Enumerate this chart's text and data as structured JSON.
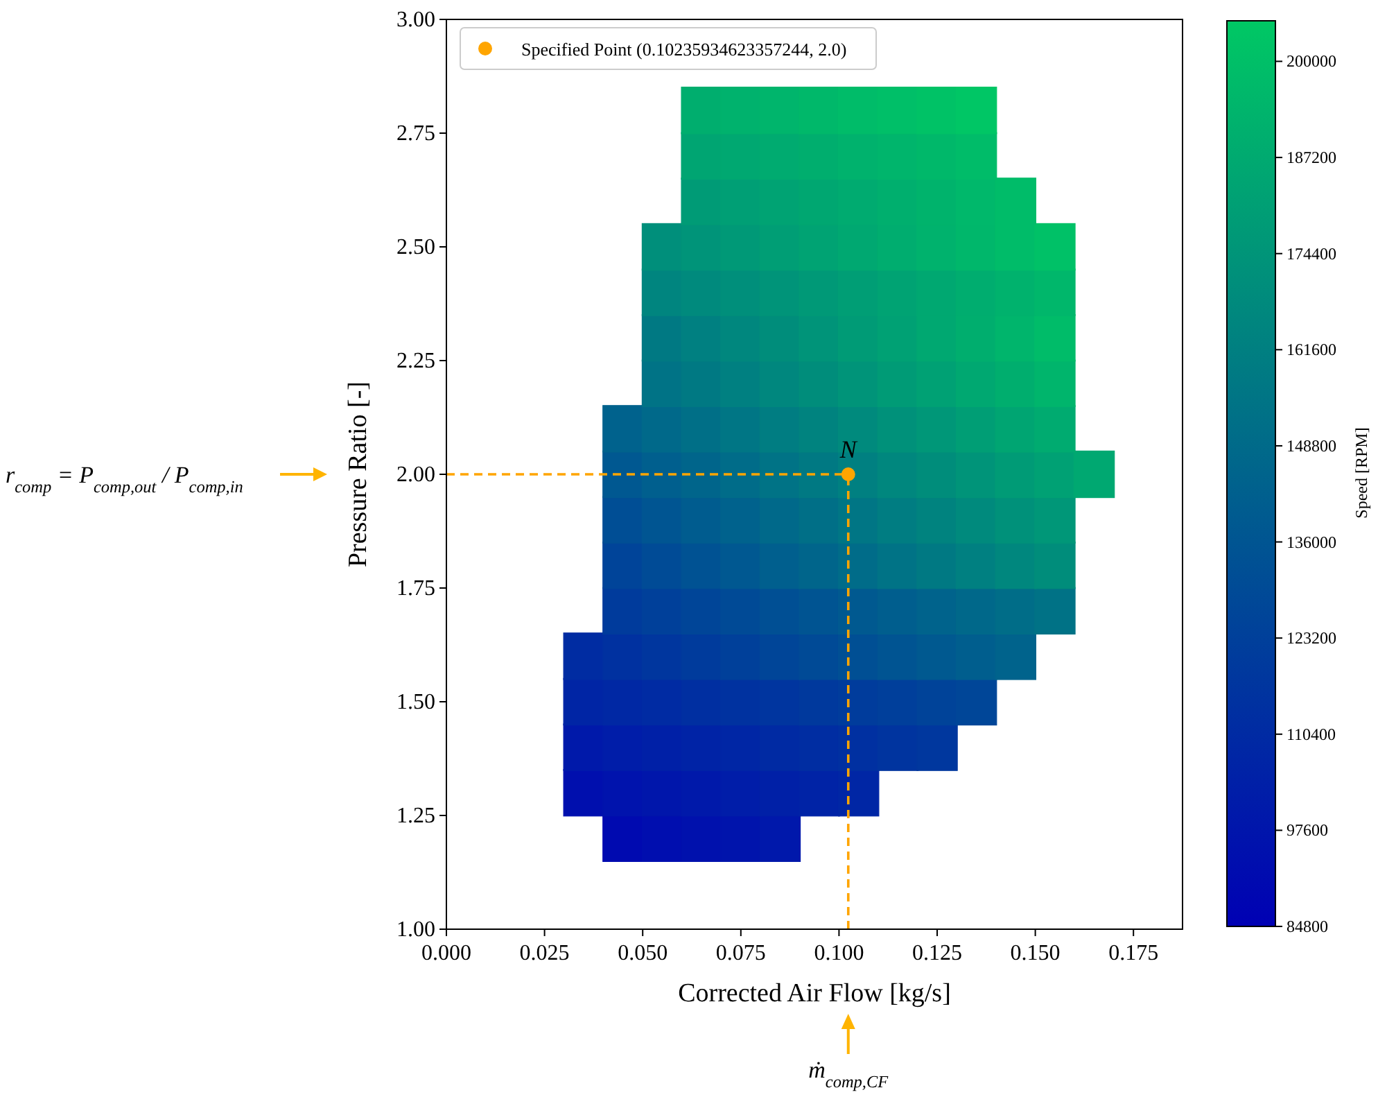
{
  "chart_data": {
    "type": "scatter",
    "xlabel": "Corrected Air Flow [kg/s]",
    "ylabel": "Pressure Ratio [-]",
    "clabel": "Speed [RPM]",
    "xlim": [
      0,
      0.1875
    ],
    "xticks": [
      {
        "value": 0,
        "label": "0.000"
      },
      {
        "value": 0.025,
        "label": "0.025"
      },
      {
        "value": 0.05,
        "label": "0.050"
      },
      {
        "value": 0.075,
        "label": "0.075"
      },
      {
        "value": 0.1,
        "label": "0.100"
      },
      {
        "value": 0.125,
        "label": "0.125"
      },
      {
        "value": 0.15,
        "label": "0.150"
      },
      {
        "value": 0.175,
        "label": "0.175"
      }
    ],
    "ylim": [
      1,
      3
    ],
    "yticks": [
      {
        "value": 1,
        "label": "1.00"
      },
      {
        "value": 1.25,
        "label": "1.25"
      },
      {
        "value": 1.5,
        "label": "1.50"
      },
      {
        "value": 1.75,
        "label": "1.75"
      },
      {
        "value": 2,
        "label": "2.00"
      },
      {
        "value": 2.25,
        "label": "2.25"
      },
      {
        "value": 2.5,
        "label": "2.50"
      },
      {
        "value": 2.75,
        "label": "2.75"
      },
      {
        "value": 3,
        "label": "3.00"
      }
    ],
    "clim": [
      84800,
      205400
    ],
    "cticks": [
      84800,
      97600,
      110400,
      123200,
      136000,
      148800,
      161600,
      174400,
      187200,
      200000
    ],
    "grid": false,
    "legend": "top left",
    "series": [
      {
        "marker": "square",
        "x": [
          0.045,
          0.055,
          0.065,
          0.075,
          0.085
        ],
        "values": [
          1.2,
          1.2,
          1.2,
          1.2,
          1.2
        ],
        "cvalues": [
          91000,
          93000,
          95000,
          97000,
          99000
        ],
        "colors": [
          "#000ab0",
          "#000eaf",
          "#0011ad",
          "#0014ac",
          "#0018ab"
        ]
      },
      {
        "marker": "square",
        "x": [
          0.035,
          0.045,
          0.055,
          0.065,
          0.075,
          0.085,
          0.095,
          0.105
        ],
        "values": [
          1.3,
          1.3,
          1.3,
          1.3,
          1.3,
          1.3,
          1.3,
          1.3
        ],
        "cvalues": [
          94000,
          96000,
          98000,
          100000,
          102000,
          104000,
          106000,
          108000
        ],
        "colors": [
          "#000fae",
          "#0013ad",
          "#0016ab",
          "#0019aa",
          "#001da9",
          "#0020a7",
          "#0023a6",
          "#0026a5"
        ]
      },
      {
        "marker": "square",
        "x": [
          0.035,
          0.045,
          0.055,
          0.065,
          0.075,
          0.085,
          0.095,
          0.105,
          0.115,
          0.125
        ],
        "values": [
          1.4,
          1.4,
          1.4,
          1.4,
          1.4,
          1.4,
          1.4,
          1.4,
          1.4,
          1.4
        ],
        "cvalues": [
          100000,
          102000,
          104000,
          106000,
          108000,
          110000,
          112000,
          114000,
          116000,
          118000
        ],
        "colors": [
          "#0019aa",
          "#001da9",
          "#0020a7",
          "#0023a6",
          "#0026a5",
          "#002aa3",
          "#002da2",
          "#0030a1",
          "#00349f",
          "#00379e"
        ]
      },
      {
        "marker": "square",
        "x": [
          0.035,
          0.045,
          0.055,
          0.065,
          0.075,
          0.085,
          0.095,
          0.105,
          0.115,
          0.125,
          0.135
        ],
        "values": [
          1.5,
          1.5,
          1.5,
          1.5,
          1.5,
          1.5,
          1.5,
          1.5,
          1.5,
          1.5,
          1.5
        ],
        "cvalues": [
          107000,
          109000,
          111000,
          113000,
          115000,
          117000,
          119000,
          121000,
          123000,
          125000,
          127000
        ],
        "colors": [
          "#0025a5",
          "#0028a4",
          "#002ba3",
          "#002fa1",
          "#0032a0",
          "#00359f",
          "#00399d",
          "#003c9c",
          "#003f9b",
          "#004399",
          "#004698"
        ]
      },
      {
        "marker": "square",
        "x": [
          0.035,
          0.045,
          0.055,
          0.065,
          0.075,
          0.085,
          0.095,
          0.105,
          0.115,
          0.125,
          0.135,
          0.145
        ],
        "values": [
          1.6,
          1.6,
          1.6,
          1.6,
          1.6,
          1.6,
          1.6,
          1.6,
          1.6,
          1.6,
          1.6,
          1.6
        ],
        "cvalues": [
          111500,
          114500,
          117500,
          120500,
          123500,
          126500,
          129500,
          132500,
          135500,
          138500,
          141500,
          144500
        ],
        "colors": [
          "#002ca2",
          "#0031a0",
          "#00369e",
          "#003b9c",
          "#00409a",
          "#004598",
          "#004a96",
          "#004f94",
          "#005492",
          "#005990",
          "#005e8e",
          "#00638c"
        ]
      },
      {
        "marker": "square",
        "x": [
          0.045,
          0.055,
          0.065,
          0.075,
          0.085,
          0.095,
          0.105,
          0.115,
          0.125,
          0.135,
          0.145,
          0.155
        ],
        "values": [
          1.7,
          1.7,
          1.7,
          1.7,
          1.7,
          1.7,
          1.7,
          1.7,
          1.7,
          1.7,
          1.7,
          1.7
        ],
        "cvalues": [
          120500,
          123500,
          126500,
          129500,
          132500,
          135500,
          138500,
          141500,
          144500,
          147500,
          150500,
          153500
        ],
        "colors": [
          "#003b9c",
          "#00409a",
          "#004598",
          "#004a96",
          "#004f94",
          "#005492",
          "#005990",
          "#005e8e",
          "#00638c",
          "#00688a",
          "#006d88",
          "#007286"
        ]
      },
      {
        "marker": "square",
        "x": [
          0.045,
          0.055,
          0.065,
          0.075,
          0.085,
          0.095,
          0.105,
          0.115,
          0.125,
          0.135,
          0.145,
          0.155
        ],
        "values": [
          1.8,
          1.8,
          1.8,
          1.8,
          1.8,
          1.8,
          1.8,
          1.8,
          1.8,
          1.8,
          1.8,
          1.8
        ],
        "cvalues": [
          126000,
          130000,
          134000,
          138000,
          142000,
          146000,
          150000,
          154000,
          158000,
          162000,
          166000,
          170000
        ],
        "colors": [
          "#004499",
          "#004b96",
          "#005293",
          "#005891",
          "#005f8e",
          "#00658b",
          "#006c89",
          "#007386",
          "#007983",
          "#008081",
          "#00877e",
          "#008d7b"
        ]
      },
      {
        "marker": "square",
        "x": [
          0.045,
          0.055,
          0.065,
          0.075,
          0.085,
          0.095,
          0.105,
          0.115,
          0.125,
          0.135,
          0.145,
          0.155
        ],
        "values": [
          1.9,
          1.9,
          1.9,
          1.9,
          1.9,
          1.9,
          1.9,
          1.9,
          1.9,
          1.9,
          1.9,
          1.9
        ],
        "cvalues": [
          132000,
          136000,
          140000,
          144000,
          148000,
          152000,
          156000,
          160000,
          164000,
          168000,
          172000,
          176000
        ],
        "colors": [
          "#004e95",
          "#005592",
          "#005c8f",
          "#00628d",
          "#00698a",
          "#006f87",
          "#007685",
          "#007d82",
          "#00837f",
          "#008a7d",
          "#00917a",
          "#009778"
        ]
      },
      {
        "marker": "square",
        "x": [
          0.045,
          0.055,
          0.065,
          0.075,
          0.085,
          0.095,
          0.105,
          0.115,
          0.125,
          0.135,
          0.145,
          0.155,
          0.165
        ],
        "values": [
          2,
          2,
          2,
          2,
          2,
          2,
          2,
          2,
          2,
          2,
          2,
          2,
          2
        ],
        "cvalues": [
          138000,
          142000,
          146000,
          150000,
          154000,
          158000,
          162000,
          166000,
          170000,
          174000,
          178000,
          182000,
          186000
        ],
        "colors": [
          "#005891",
          "#005f8e",
          "#00658b",
          "#006c89",
          "#007386",
          "#007983",
          "#008081",
          "#00877e",
          "#008d7b",
          "#009479",
          "#009b76",
          "#00a174",
          "#00a871"
        ]
      },
      {
        "marker": "square",
        "x": [
          0.045,
          0.055,
          0.065,
          0.075,
          0.085,
          0.095,
          0.105,
          0.115,
          0.125,
          0.135,
          0.145,
          0.155
        ],
        "values": [
          2.1,
          2.1,
          2.1,
          2.1,
          2.1,
          2.1,
          2.1,
          2.1,
          2.1,
          2.1,
          2.1,
          2.1
        ],
        "cvalues": [
          144000,
          148000,
          152000,
          156000,
          160000,
          164000,
          168000,
          172000,
          176000,
          180000,
          184000,
          188000
        ],
        "colors": [
          "#00628d",
          "#00698a",
          "#006f87",
          "#007685",
          "#007d82",
          "#00837f",
          "#008a7d",
          "#00917a",
          "#009778",
          "#009e75",
          "#00a572",
          "#00ab70"
        ]
      },
      {
        "marker": "square",
        "x": [
          0.055,
          0.065,
          0.075,
          0.085,
          0.095,
          0.105,
          0.115,
          0.125,
          0.135,
          0.145,
          0.155
        ],
        "values": [
          2.2,
          2.2,
          2.2,
          2.2,
          2.2,
          2.2,
          2.2,
          2.2,
          2.2,
          2.2,
          2.2
        ],
        "cvalues": [
          154000,
          158000,
          162000,
          166000,
          170000,
          174000,
          178000,
          182000,
          186000,
          190000,
          194000
        ],
        "colors": [
          "#007386",
          "#007983",
          "#008081",
          "#00877e",
          "#008d7b",
          "#009479",
          "#009b76",
          "#00a174",
          "#00a871",
          "#00ae6e",
          "#00b56c"
        ]
      },
      {
        "marker": "square",
        "x": [
          0.055,
          0.065,
          0.075,
          0.085,
          0.095,
          0.105,
          0.115,
          0.125,
          0.135,
          0.145,
          0.155
        ],
        "values": [
          2.3,
          2.3,
          2.3,
          2.3,
          2.3,
          2.3,
          2.3,
          2.3,
          2.3,
          2.3,
          2.3
        ],
        "cvalues": [
          158000,
          162000,
          166000,
          170000,
          174000,
          178000,
          182000,
          186000,
          190000,
          194000,
          198000
        ],
        "colors": [
          "#007983",
          "#008081",
          "#00877e",
          "#008d7b",
          "#009479",
          "#009b76",
          "#00a174",
          "#00a871",
          "#00ae6e",
          "#00b56c",
          "#00bc69"
        ]
      },
      {
        "marker": "square",
        "x": [
          0.055,
          0.065,
          0.075,
          0.085,
          0.095,
          0.105,
          0.115,
          0.125,
          0.135,
          0.145,
          0.155
        ],
        "values": [
          2.4,
          2.4,
          2.4,
          2.4,
          2.4,
          2.4,
          2.4,
          2.4,
          2.4,
          2.4,
          2.4
        ],
        "cvalues": [
          165000,
          168000,
          171000,
          174000,
          177000,
          180000,
          183000,
          186000,
          189000,
          192000,
          195000
        ],
        "colors": [
          "#00857f",
          "#008a7d",
          "#008f7b",
          "#009479",
          "#009977",
          "#009e75",
          "#00a373",
          "#00a871",
          "#00ad6f",
          "#00b26d",
          "#00b76b"
        ]
      },
      {
        "marker": "square",
        "x": [
          0.055,
          0.065,
          0.075,
          0.085,
          0.095,
          0.105,
          0.115,
          0.125,
          0.135,
          0.145,
          0.155
        ],
        "values": [
          2.5,
          2.5,
          2.5,
          2.5,
          2.5,
          2.5,
          2.5,
          2.5,
          2.5,
          2.5,
          2.5
        ],
        "cvalues": [
          171000,
          174000,
          177000,
          180000,
          183000,
          186000,
          189000,
          192000,
          195000,
          198000,
          201000
        ],
        "colors": [
          "#008f7b",
          "#009479",
          "#009977",
          "#009e75",
          "#00a373",
          "#00a871",
          "#00ad6f",
          "#00b26d",
          "#00b76b",
          "#00bc69",
          "#00c167"
        ]
      },
      {
        "marker": "square",
        "x": [
          0.065,
          0.075,
          0.085,
          0.095,
          0.105,
          0.115,
          0.125,
          0.135,
          0.145
        ],
        "values": [
          2.6,
          2.6,
          2.6,
          2.6,
          2.6,
          2.6,
          2.6,
          2.6,
          2.6
        ],
        "cvalues": [
          178000,
          180500,
          183000,
          185500,
          188000,
          190500,
          193000,
          195500,
          198000
        ],
        "colors": [
          "#009b76",
          "#009f75",
          "#00a373",
          "#00a771",
          "#00ab70",
          "#00af6e",
          "#00b36c",
          "#00b86b",
          "#00bc69"
        ]
      },
      {
        "marker": "square",
        "x": [
          0.065,
          0.075,
          0.085,
          0.095,
          0.105,
          0.115,
          0.125,
          0.135
        ],
        "values": [
          2.7,
          2.7,
          2.7,
          2.7,
          2.7,
          2.7,
          2.7,
          2.7
        ],
        "cvalues": [
          184000,
          186000,
          188000,
          190000,
          192000,
          194000,
          196000,
          198000
        ],
        "colors": [
          "#00a572",
          "#00a871",
          "#00ab70",
          "#00ae6e",
          "#00b26d",
          "#00b56c",
          "#00b86a",
          "#00bc69"
        ]
      },
      {
        "marker": "square",
        "x": [
          0.065,
          0.075,
          0.085,
          0.095,
          0.105,
          0.115,
          0.125,
          0.135
        ],
        "values": [
          2.8,
          2.8,
          2.8,
          2.8,
          2.8,
          2.8,
          2.8,
          2.8
        ],
        "cvalues": [
          190000,
          192000,
          194000,
          196000,
          198000,
          200000,
          202000,
          204000
        ],
        "colors": [
          "#00ae6e",
          "#00b26d",
          "#00b56c",
          "#00b86a",
          "#00bc69",
          "#00bf68",
          "#00c266",
          "#00c665"
        ]
      },
      {
        "name": "Specified Point (0.10235934623357244, 2.0)",
        "color": "#ffa500",
        "marker": "circle",
        "x": [
          0.10235934623357244
        ],
        "values": [
          2.0
        ]
      }
    ],
    "ref_lines": [
      {
        "axis": "x",
        "value": 0.10235934623357244,
        "color": "#ffa500",
        "line_style": "dashed"
      },
      {
        "axis": "y",
        "value": 2.0,
        "color": "#ffa500",
        "line_style": "dashed"
      }
    ],
    "annotations": [
      {
        "text": "N",
        "x": 0.10235934623357244,
        "y": 2.0
      },
      "r$_{comp}$ = P$_{comp,out}$ / P$_{comp,in}$",
      "ṁ$_{comp,CF}$"
    ]
  }
}
